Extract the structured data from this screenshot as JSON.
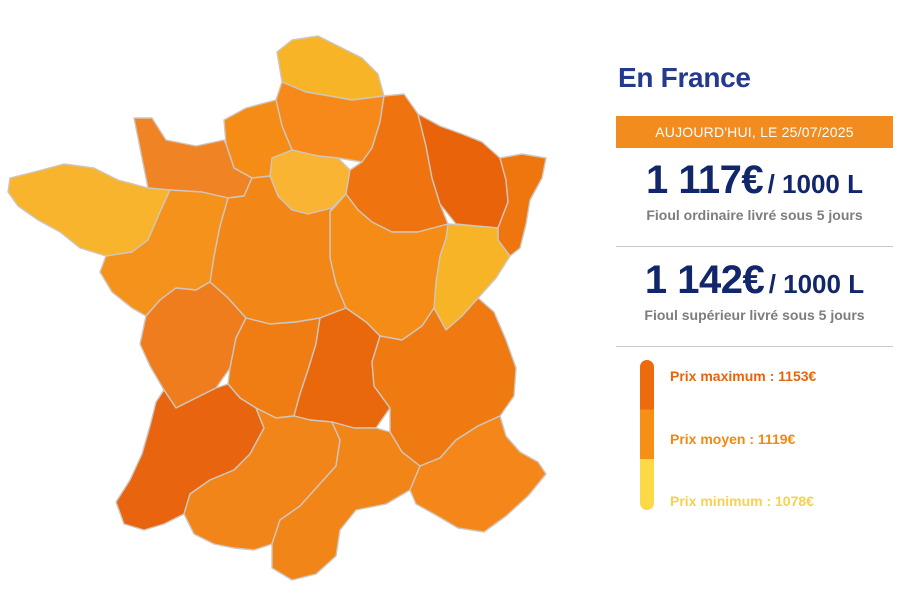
{
  "panel": {
    "title": "En France",
    "date_banner": "AUJOURD'HUI, LE 25/07/2025",
    "prices": [
      {
        "value": "1 117€",
        "unit": "/ 1000 L",
        "description": "Fioul ordinaire livré sous 5 jours"
      },
      {
        "value": "1 142€",
        "unit": "/ 1000 L",
        "description": "Fioul supérieur livré sous 5 jours"
      }
    ]
  },
  "legend": [
    {
      "label": "Prix maximum : 1153€",
      "color": "#e8640c"
    },
    {
      "label": "Prix moyen : 1119€",
      "color": "#f2890f"
    },
    {
      "label": "Prix minimum : 1078€",
      "color": "#f7d24a"
    }
  ],
  "colors": {
    "title": "#243a8f",
    "banner_bg": "#f28c1f",
    "price_text": "#12266b",
    "description_text": "#7d7d7d",
    "region_border": "#cfc6bd"
  },
  "map": {
    "region_colors": {
      "nord": "#f8b427",
      "picardie": "#f7891b",
      "haute-normandie": "#f58c16",
      "basse-normandie": "#f08323",
      "bretagne": "#f8b42c",
      "ile-de-france": "#f8b432",
      "champagne": "#ef740f",
      "lorraine": "#e9630b",
      "alsace": "#ef760f",
      "franche-comte": "#f8b427",
      "bourgogne": "#f58c16",
      "centre": "#f28718",
      "pays-de-la-loire": "#f5921c",
      "poitou-charentes": "#f07d1d",
      "limousin": "#f07c14",
      "auvergne": "#e9680c",
      "rhone-alpes": "#f07a12",
      "aquitaine": "#e8640e",
      "midi-pyrenees": "#f2851a",
      "languedoc": "#f28517",
      "paca": "#f5871a"
    }
  }
}
